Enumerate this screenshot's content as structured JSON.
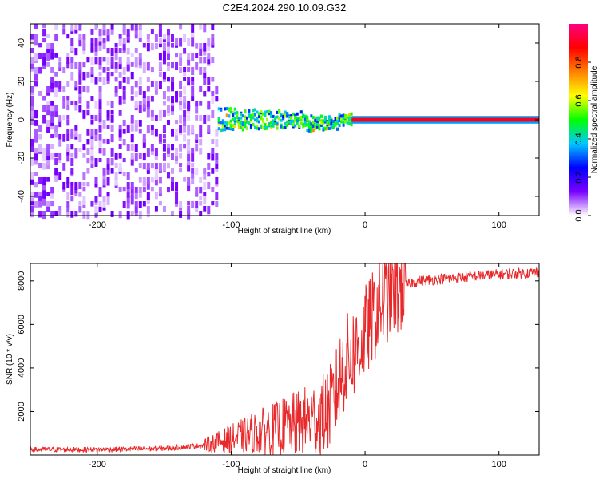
{
  "title": "C2E4.2024.290.10.09.G32",
  "chart_data": [
    {
      "type": "heatmap",
      "xlabel": "Height of straight line (km)",
      "ylabel": "Frequency (Hz)",
      "xlim": [
        -250,
        130
      ],
      "ylim": [
        -50,
        50
      ],
      "xticks": [
        -200,
        -100,
        0,
        100
      ],
      "yticks": [
        -40,
        -20,
        0,
        20,
        40
      ],
      "colorbar": {
        "label": "Normalized spectral amplitude",
        "range": [
          0,
          1
        ],
        "ticks": [
          0.0,
          0.2,
          0.4,
          0.6,
          0.8
        ],
        "tick_labels": [
          "0.0",
          "0.2",
          "0.4",
          "0.6",
          "0.8"
        ],
        "colors": [
          "#ffffff",
          "#7a00ff",
          "#0000ff",
          "#00c8ff",
          "#00ff00",
          "#ffff00",
          "#ff8000",
          "#ff0000",
          "#ff0080"
        ]
      },
      "description": [
        {
          "x_range": [
            -250,
            -110
          ],
          "freq_range": [
            -50,
            50
          ],
          "amplitude": 0.1
        },
        {
          "x_range": [
            -110,
            -10
          ],
          "freq_center": 0,
          "amplitude": 0.45
        },
        {
          "x_range": [
            -10,
            130
          ],
          "freq_center": 0,
          "amplitude": 1.0
        }
      ]
    },
    {
      "type": "line",
      "xlabel": "Height of straight line (km)",
      "ylabel": "SNR (10 * v/v)",
      "xlim": [
        -250,
        130
      ],
      "ylim": [
        0,
        8800
      ],
      "xticks": [
        -200,
        -100,
        0,
        100
      ],
      "yticks": [
        2000,
        4000,
        6000,
        8000
      ],
      "series": [
        {
          "color": "#e8282a",
          "x": [
            -250,
            -200,
            -150,
            -120,
            -100,
            -80,
            -60,
            -40,
            -30,
            -25,
            -22,
            -20,
            -18,
            -15,
            -10,
            -5,
            0,
            5,
            10,
            15,
            20,
            30,
            40,
            60,
            80,
            100,
            130
          ],
          "y": [
            250,
            250,
            300,
            450,
            750,
            1050,
            1300,
            1600,
            1900,
            2300,
            2800,
            3200,
            3700,
            4200,
            4600,
            5000,
            5600,
            6200,
            6800,
            7200,
            7500,
            7800,
            8000,
            8100,
            8200,
            8300,
            8400
          ]
        }
      ]
    }
  ]
}
